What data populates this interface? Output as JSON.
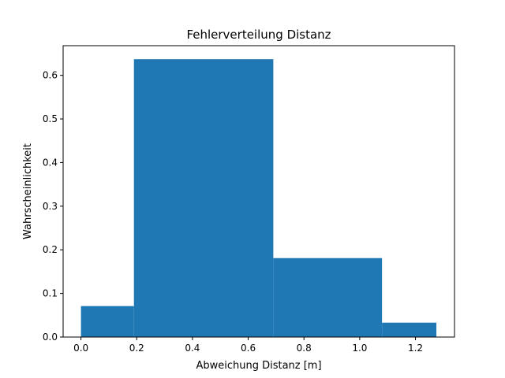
{
  "chart_data": {
    "type": "bar",
    "title": "Fehlerverteilung Distanz",
    "xlabel": "Abweichung Distanz [m]",
    "ylabel": "Wahrscheinlichkeit",
    "xlim": [
      -0.064,
      1.34
    ],
    "ylim": [
      0.0,
      0.668
    ],
    "xticks": [
      0.0,
      0.2,
      0.4,
      0.6,
      0.8,
      1.0,
      1.2
    ],
    "xtick_labels": [
      "0.0",
      "0.2",
      "0.4",
      "0.6",
      "0.8",
      "1.0",
      "1.2"
    ],
    "yticks": [
      0.0,
      0.1,
      0.2,
      0.3,
      0.4,
      0.5,
      0.6
    ],
    "ytick_labels": [
      "0.0",
      "0.1",
      "0.2",
      "0.3",
      "0.4",
      "0.5",
      "0.6"
    ],
    "grid": false,
    "color": "#1f77b4",
    "bins": [
      {
        "x0": 0.0,
        "x1": 0.19,
        "value": 0.071
      },
      {
        "x0": 0.19,
        "x1": 0.69,
        "value": 0.637
      },
      {
        "x0": 0.69,
        "x1": 1.08,
        "value": 0.181
      },
      {
        "x0": 1.08,
        "x1": 1.275,
        "value": 0.033
      }
    ]
  }
}
